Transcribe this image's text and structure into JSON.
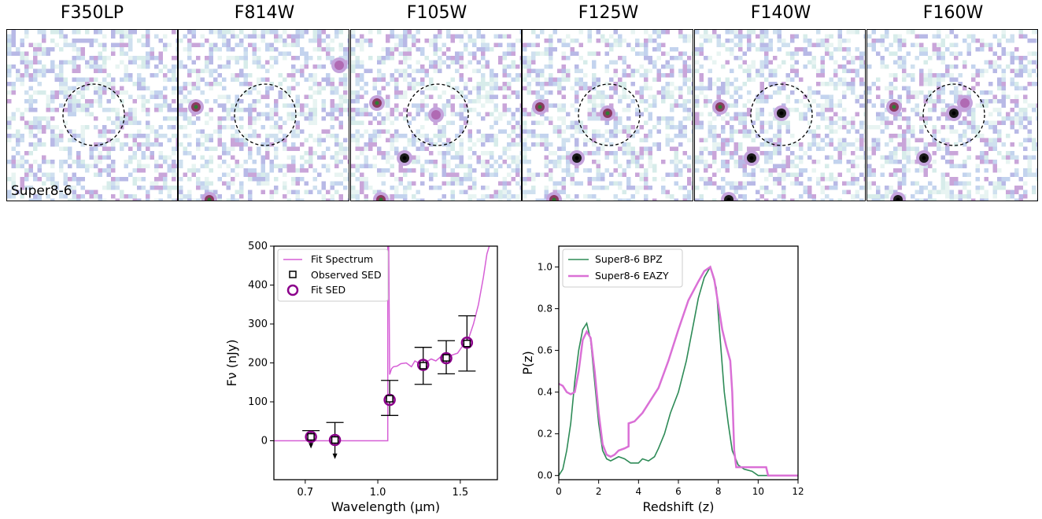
{
  "stamps": {
    "filters": [
      "F350LP",
      "F814W",
      "F105W",
      "F125W",
      "F140W",
      "F160W"
    ],
    "object_label": "Super8-6"
  },
  "chart_data": [
    {
      "type": "scatter",
      "xlabel": "Wavelength (μm)",
      "ylabel": "Fν (nJy)",
      "xscale": "log",
      "xlim": [
        0.6,
        1.8
      ],
      "ylim": [
        -100,
        500
      ],
      "xticks": [
        0.7,
        1.0,
        1.5
      ],
      "yticks": [
        0,
        100,
        200,
        300,
        400,
        500
      ],
      "legend": [
        "Fit Spectrum",
        "Observed SED",
        "Fit SED"
      ],
      "legend_position": "top-left",
      "series": [
        {
          "name": "Fit Spectrum",
          "style": "line",
          "color": "#d65fd6",
          "x": [
            0.6,
            1.05,
            1.05,
            1.055,
            1.06,
            1.07,
            1.08,
            1.1,
            1.12,
            1.15,
            1.18,
            1.2,
            1.22,
            1.25,
            1.28,
            1.3,
            1.33,
            1.36,
            1.4,
            1.44,
            1.48,
            1.52,
            1.56,
            1.6,
            1.64,
            1.68,
            1.71,
            1.73
          ],
          "y": [
            0,
            0,
            500,
            500,
            170,
            185,
            190,
            192,
            198,
            200,
            190,
            205,
            200,
            195,
            205,
            210,
            205,
            215,
            212,
            220,
            225,
            245,
            260,
            300,
            350,
            420,
            480,
            500
          ]
        },
        {
          "name": "Observed SED",
          "style": "square",
          "x": [
            0.72,
            0.81,
            1.06,
            1.25,
            1.4,
            1.55
          ],
          "y": [
            10,
            2,
            108,
            193,
            213,
            250
          ],
          "yerr_low": [
            26,
            45,
            43,
            48,
            41,
            71
          ],
          "yerr_high": [
            16,
            45,
            47,
            47,
            44,
            71
          ],
          "upper_limit": [
            true,
            true,
            false,
            false,
            false,
            false
          ]
        },
        {
          "name": "Fit SED",
          "style": "circle",
          "color": "#8b008b",
          "x": [
            0.72,
            0.81,
            1.06,
            1.25,
            1.4,
            1.55
          ],
          "y": [
            10,
            2,
            105,
            195,
            212,
            252
          ]
        }
      ]
    },
    {
      "type": "line",
      "xlabel": "Redshift (z)",
      "ylabel": "P(z)",
      "xlim": [
        0,
        12
      ],
      "ylim": [
        -0.02,
        1.1
      ],
      "xticks": [
        0,
        2,
        4,
        6,
        8,
        10,
        12
      ],
      "yticks": [
        0.0,
        0.2,
        0.4,
        0.6,
        0.8,
        1.0
      ],
      "legend": [
        "Super8-6 BPZ",
        "Super8-6 EAZY"
      ],
      "legend_position": "top-left",
      "series": [
        {
          "name": "Super8-6 BPZ",
          "color": "#2e8b57",
          "x": [
            0,
            0.2,
            0.4,
            0.6,
            0.8,
            1.0,
            1.2,
            1.4,
            1.6,
            1.8,
            2.0,
            2.2,
            2.4,
            2.6,
            2.8,
            3.0,
            3.3,
            3.6,
            4.0,
            4.2,
            4.5,
            4.8,
            5.0,
            5.3,
            5.6,
            6.0,
            6.4,
            6.8,
            7.0,
            7.3,
            7.6,
            7.9,
            8.1,
            8.3,
            8.5,
            8.7,
            9.0,
            9.3,
            9.7,
            10.0,
            10.5,
            12.0
          ],
          "y": [
            0.0,
            0.03,
            0.12,
            0.25,
            0.45,
            0.6,
            0.7,
            0.73,
            0.65,
            0.45,
            0.25,
            0.12,
            0.08,
            0.07,
            0.08,
            0.09,
            0.08,
            0.06,
            0.06,
            0.08,
            0.07,
            0.09,
            0.13,
            0.2,
            0.3,
            0.4,
            0.55,
            0.75,
            0.85,
            0.95,
            1.0,
            0.9,
            0.65,
            0.4,
            0.25,
            0.12,
            0.05,
            0.03,
            0.02,
            0.0,
            0.0,
            0.0
          ]
        },
        {
          "name": "Super8-6 EAZY",
          "color": "#da70d6",
          "x": [
            0,
            0.2,
            0.4,
            0.6,
            0.8,
            1.0,
            1.2,
            1.4,
            1.6,
            1.8,
            2.0,
            2.2,
            2.4,
            2.6,
            2.8,
            3.0,
            3.3,
            3.5,
            3.5,
            3.8,
            4.2,
            4.6,
            5.0,
            5.5,
            6.0,
            6.5,
            7.0,
            7.3,
            7.6,
            7.8,
            8.0,
            8.2,
            8.4,
            8.6,
            8.7,
            8.8,
            8.9,
            9.0,
            9.5,
            10.0,
            10.4,
            10.5,
            12.0
          ],
          "y": [
            0.44,
            0.43,
            0.4,
            0.39,
            0.4,
            0.5,
            0.65,
            0.69,
            0.66,
            0.5,
            0.3,
            0.15,
            0.1,
            0.09,
            0.1,
            0.12,
            0.13,
            0.14,
            0.25,
            0.26,
            0.3,
            0.36,
            0.42,
            0.55,
            0.7,
            0.84,
            0.93,
            0.98,
            1.0,
            0.94,
            0.82,
            0.7,
            0.62,
            0.55,
            0.4,
            0.12,
            0.04,
            0.04,
            0.04,
            0.04,
            0.04,
            0.0,
            0.0
          ]
        }
      ]
    }
  ]
}
